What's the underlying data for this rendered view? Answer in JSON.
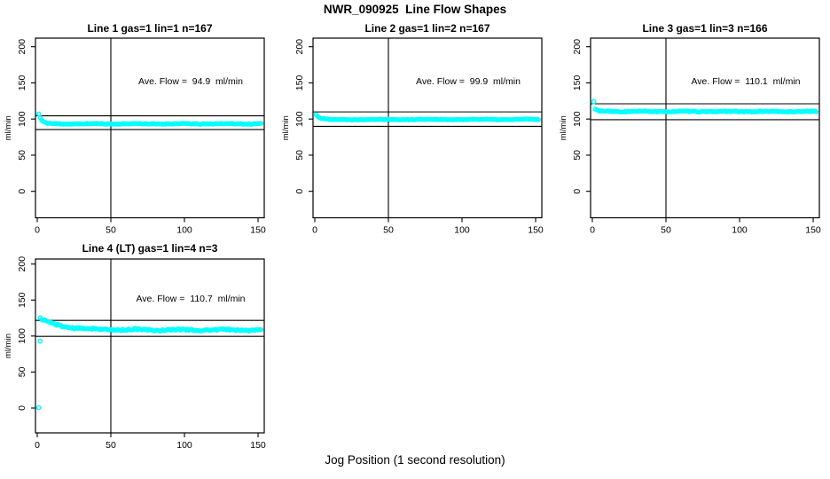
{
  "page": {
    "background": "#FFFFFF",
    "text_color": "#000000"
  },
  "chart_data": {
    "type": "scatter",
    "title": "NWR_090925  Line Flow Shapes",
    "xlabel": "Jog Position (1 second resolution)",
    "ylabel": "ml/min",
    "point_color": "#00FFFF",
    "axis_color": "#000000",
    "grid": false,
    "legend": "none",
    "marker": "open-circle",
    "x_ticks": [
      0,
      50,
      100,
      150
    ],
    "y_ticks": [
      0,
      50,
      100,
      150,
      200
    ],
    "xlim": [
      -1.2,
      154.2
    ],
    "panels": [
      {
        "title": "Line 1 gas=1 lin=1 n=167",
        "n": 167,
        "ave_flow": 94.9,
        "ave_label": "Ave. Flow =  94.9  ml/min",
        "ylim": [
          -36.6,
          211.9
        ],
        "ref_line_upper": 104.4,
        "ref_line_lower": 85.4,
        "ref_line_vertical_x": 50,
        "series_model": {
          "x_start": 1,
          "x_end": 152,
          "x_step": 1,
          "start_y": 107,
          "asymptote": 93.4,
          "decay_tau": 2.0,
          "jitter": 0.5,
          "wave_amp": 0.3,
          "wave_period": 30,
          "seed": 11
        },
        "keypoints": [
          [
            1,
            107
          ],
          [
            2,
            101.5
          ],
          [
            3,
            98.4
          ],
          [
            5,
            95.3
          ],
          [
            10,
            93.6
          ],
          [
            25,
            93.5
          ],
          [
            50,
            93.4
          ],
          [
            75,
            93.4
          ],
          [
            100,
            93.4
          ],
          [
            125,
            93.3
          ],
          [
            150,
            93.3
          ]
        ],
        "outliers": []
      },
      {
        "title": "Line 2 gas=1 lin=2 n=167",
        "n": 167,
        "ave_flow": 99.9,
        "ave_label": "Ave. Flow =  99.9  ml/min",
        "ylim": [
          -36.6,
          211.9
        ],
        "ref_line_upper": 109.9,
        "ref_line_lower": 89.9,
        "ref_line_vertical_x": 50,
        "series_model": {
          "x_start": 1,
          "x_end": 152,
          "x_step": 1,
          "start_y": 106,
          "asymptote": 99.4,
          "decay_tau": 2.3,
          "jitter": 0.5,
          "wave_amp": 0.3,
          "wave_period": 34,
          "seed": 22
        },
        "keypoints": [
          [
            1,
            106
          ],
          [
            2,
            103
          ],
          [
            3,
            101.3
          ],
          [
            5,
            100.1
          ],
          [
            10,
            99.5
          ],
          [
            25,
            99.4
          ],
          [
            50,
            99.4
          ],
          [
            75,
            99.4
          ],
          [
            100,
            99.4
          ],
          [
            125,
            99.4
          ],
          [
            150,
            99.4
          ]
        ],
        "outliers": []
      },
      {
        "title": "Line 3 gas=1 lin=3 n=166",
        "n": 166,
        "ave_flow": 110.1,
        "ave_label": "Ave. Flow =  110.1  ml/min",
        "ylim": [
          -36.6,
          211.9
        ],
        "ref_line_upper": 121.1,
        "ref_line_lower": 99.1,
        "ref_line_vertical_x": 50,
        "series_model": {
          "x_start": 2,
          "x_end": 152,
          "x_step": 1,
          "start_y": 113.5,
          "asymptote": 110.4,
          "decay_tau": 2.0,
          "jitter": 0.6,
          "wave_amp": 0.3,
          "wave_period": 28,
          "seed": 33
        },
        "keypoints": [
          [
            1,
            124
          ],
          [
            2,
            113.5
          ],
          [
            3,
            112
          ],
          [
            5,
            111
          ],
          [
            10,
            110.6
          ],
          [
            25,
            110.5
          ],
          [
            50,
            110.4
          ],
          [
            75,
            110.4
          ],
          [
            100,
            110.4
          ],
          [
            125,
            110.4
          ],
          [
            150,
            110.3
          ]
        ],
        "outliers": [
          [
            1,
            124
          ]
        ]
      },
      {
        "title": "Line 4 (LT) gas=1 lin=4 n=3",
        "n": 3,
        "ave_flow": 110.7,
        "ave_label": "Ave. Flow =  110.7  ml/min",
        "ylim": [
          -34.5,
          207.0
        ],
        "ref_line_upper": 121.8,
        "ref_line_lower": 99.6,
        "ref_line_vertical_x": 50,
        "series_model": {
          "x_start": 2,
          "x_end": 152,
          "x_step": 1,
          "start_y": 124.5,
          "asymptote": 108.5,
          "decay_tau": 14,
          "jitter": 1.1,
          "wave_amp": 0.7,
          "wave_period": 30,
          "seed": 44
        },
        "keypoints": [
          [
            2,
            124.5
          ],
          [
            5,
            121.5
          ],
          [
            10,
            117.5
          ],
          [
            20,
            113
          ],
          [
            30,
            110.5
          ],
          [
            50,
            109.1
          ],
          [
            75,
            108.7
          ],
          [
            100,
            108.8
          ],
          [
            125,
            108.4
          ],
          [
            150,
            108.5
          ]
        ],
        "outliers": [
          [
            1,
            0.5
          ],
          [
            2,
            93
          ]
        ]
      }
    ]
  }
}
